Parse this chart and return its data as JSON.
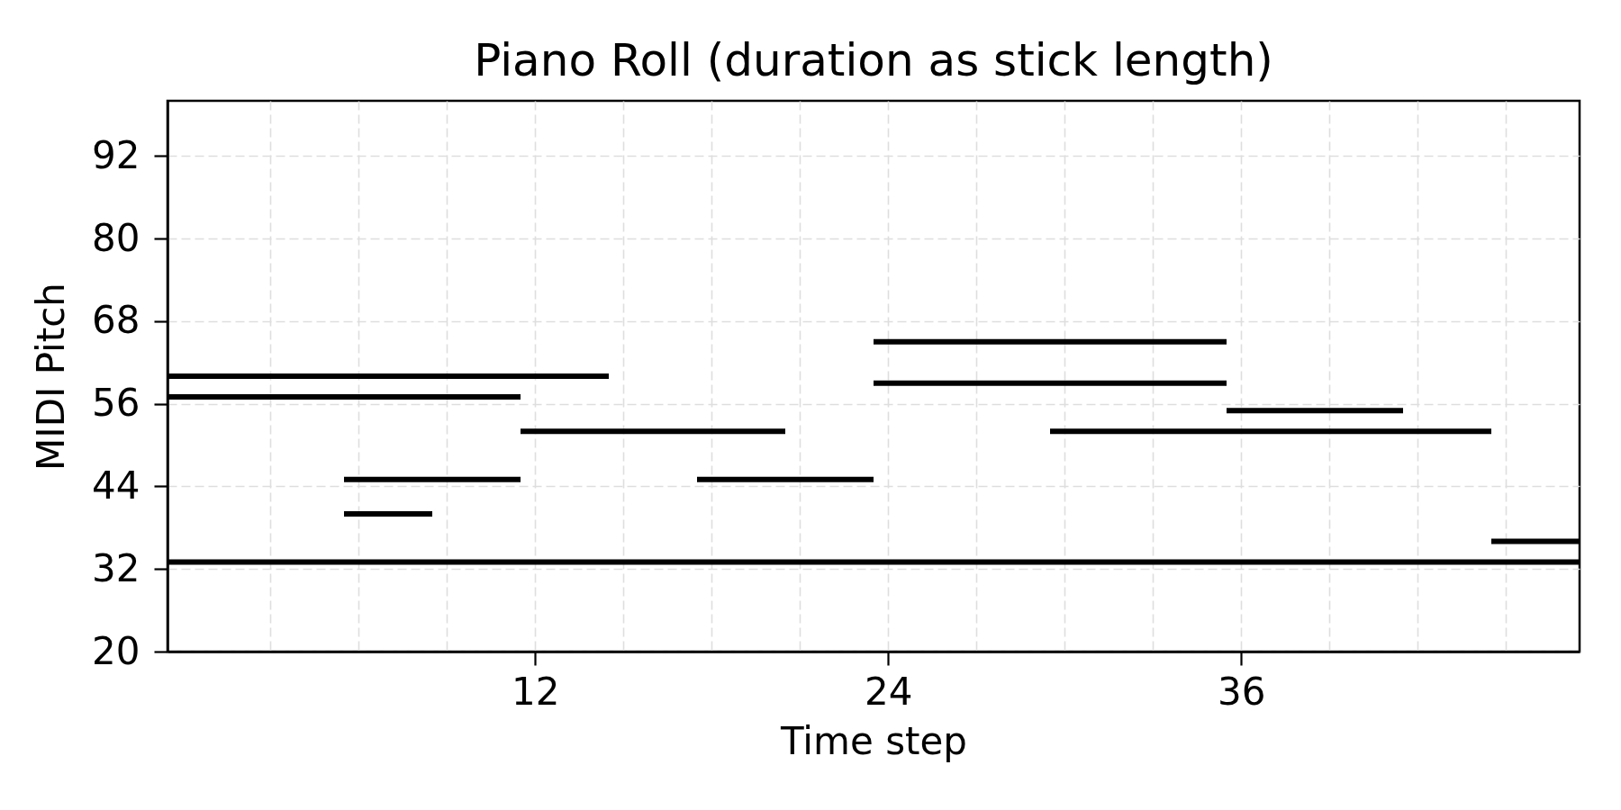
{
  "chart_data": {
    "type": "line",
    "title": "Piano Roll (duration as stick length)",
    "xlabel": "Time step",
    "ylabel": "MIDI Pitch",
    "xlim": [
      -0.5,
      47.5
    ],
    "xticks": [
      {
        "value": 3,
        "label": null
      },
      {
        "value": 6,
        "label": null
      },
      {
        "value": 9,
        "label": null
      },
      12,
      {
        "value": 15,
        "label": null
      },
      {
        "value": 18,
        "label": null
      },
      {
        "value": 21,
        "label": null
      },
      24,
      {
        "value": 27,
        "label": null
      },
      {
        "value": 30,
        "label": null
      },
      {
        "value": 33,
        "label": null
      },
      36,
      {
        "value": 39,
        "label": null
      },
      {
        "value": 42,
        "label": null
      },
      {
        "value": 45,
        "label": null
      }
    ],
    "ylim": [
      20,
      100
    ],
    "yticks": [
      20,
      32,
      44,
      56,
      68,
      80,
      92
    ],
    "grid": true,
    "marker": "none",
    "line_style": "solid",
    "series": [
      {
        "color": "#000000",
        "x": [
          -0.5,
          14.5
        ],
        "values": [
          60,
          60
        ]
      },
      {
        "color": "#000000",
        "x": [
          -0.5,
          11.5
        ],
        "values": [
          57,
          57
        ]
      },
      {
        "color": "#000000",
        "x": [
          11.5,
          20.5
        ],
        "values": [
          52,
          52
        ]
      },
      {
        "color": "#000000",
        "x": [
          29.5,
          44.5
        ],
        "values": [
          52,
          52
        ]
      },
      {
        "color": "#000000",
        "x": [
          5.5,
          11.5
        ],
        "values": [
          45,
          45
        ]
      },
      {
        "color": "#000000",
        "x": [
          17.5,
          23.5
        ],
        "values": [
          45,
          45
        ]
      },
      {
        "color": "#000000",
        "x": [
          5.5,
          8.5
        ],
        "values": [
          40,
          40
        ]
      },
      {
        "color": "#000000",
        "x": [
          -0.5,
          47.5
        ],
        "values": [
          33,
          33
        ]
      },
      {
        "color": "#000000",
        "x": [
          23.5,
          35.5
        ],
        "values": [
          65,
          65
        ]
      },
      {
        "color": "#000000",
        "x": [
          23.5,
          35.5
        ],
        "values": [
          59,
          59
        ]
      },
      {
        "color": "#000000",
        "x": [
          35.5,
          41.5
        ],
        "values": [
          55,
          55
        ]
      },
      {
        "color": "#000000",
        "x": [
          44.5,
          47.5
        ],
        "values": [
          36,
          36
        ]
      }
    ]
  }
}
